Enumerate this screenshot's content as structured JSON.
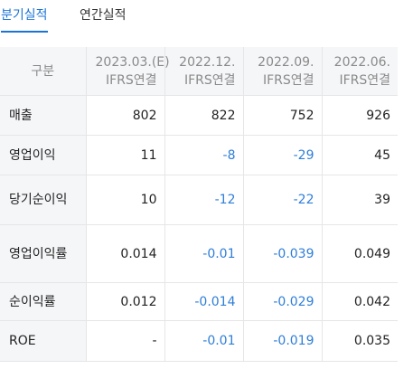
{
  "tabs": {
    "quarterly": "분기실적",
    "annual": "연간실적"
  },
  "table": {
    "corner_label": "구분",
    "columns": [
      {
        "period": "2023.03.(E)",
        "basis": "IFRS연결"
      },
      {
        "period": "2022.12.",
        "basis": "IFRS연결"
      },
      {
        "period": "2022.09.",
        "basis": "IFRS연결"
      },
      {
        "period": "2022.06.",
        "basis": "IFRS연결"
      }
    ],
    "rows": [
      {
        "label": "매출",
        "values": [
          "802",
          "822",
          "752",
          "926"
        ]
      },
      {
        "label": "영업이익",
        "values": [
          "11",
          "-8",
          "-29",
          "45"
        ]
      },
      {
        "label": "당기순이익",
        "values": [
          "10",
          "-12",
          "-22",
          "39"
        ]
      },
      {
        "label": "영업이익률",
        "values": [
          "0.014",
          "-0.01",
          "-0.039",
          "0.049"
        ]
      },
      {
        "label": "순이익률",
        "values": [
          "0.012",
          "-0.014",
          "-0.029",
          "0.042"
        ]
      },
      {
        "label": "ROE",
        "values": [
          "-",
          "-0.01",
          "-0.019",
          "0.035"
        ]
      }
    ]
  },
  "colors": {
    "accent": "#1a73d6",
    "negative": "#2f7ed8",
    "header_bg": "#f5f6f8",
    "border": "#e6e6e6"
  }
}
